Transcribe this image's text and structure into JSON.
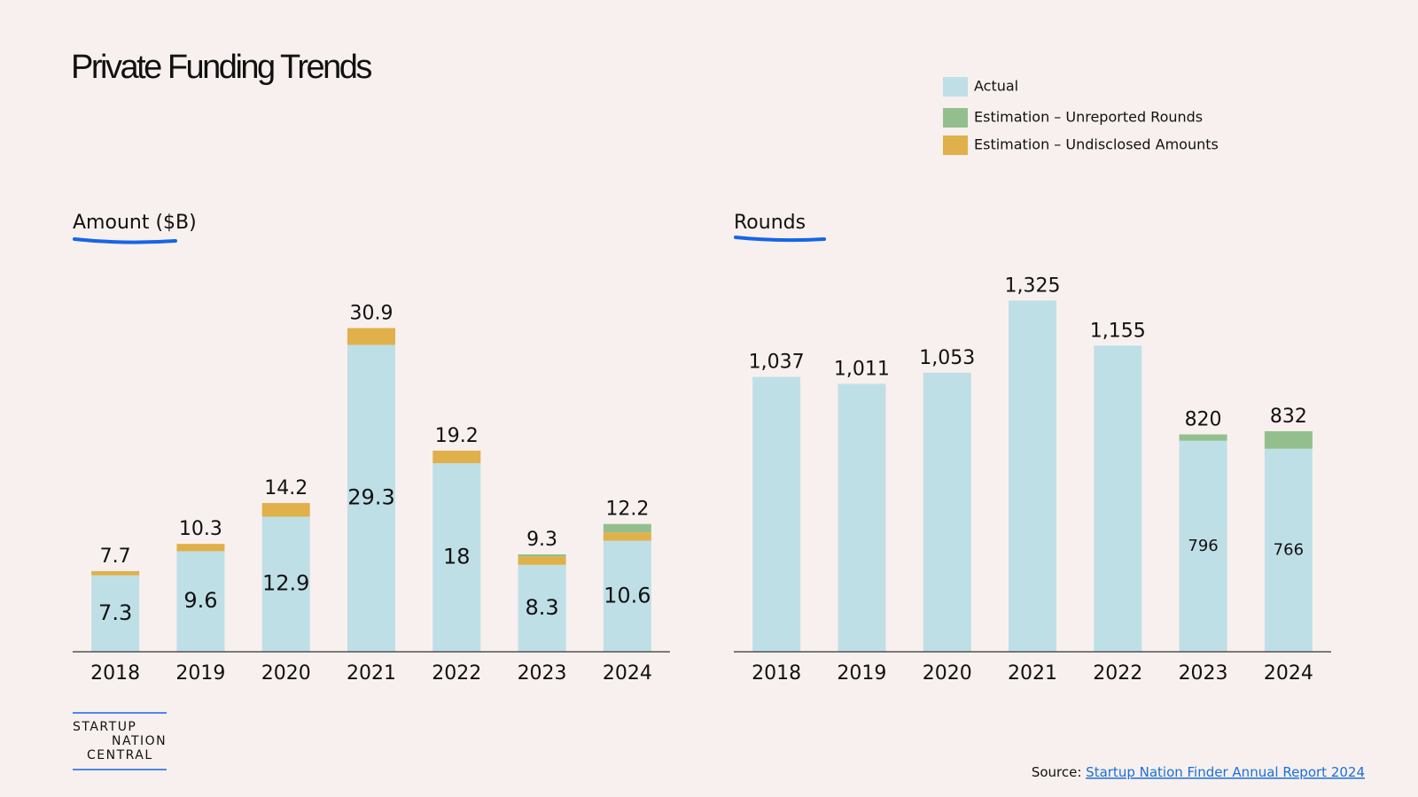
{
  "title": "Private Funding Trends",
  "chart_data": [
    {
      "type": "stacked-bar",
      "title": "Amount ($B)",
      "categories": [
        "2018",
        "2019",
        "2020",
        "2021",
        "2022",
        "2023",
        "2024"
      ],
      "series": [
        {
          "name": "Actual",
          "color": "#bfdfe7",
          "values": [
            7.3,
            9.6,
            12.9,
            29.3,
            18,
            8.3,
            10.6
          ]
        },
        {
          "name": "Estimation – Unreported Rounds",
          "color": "#93bf8f",
          "values": [
            0,
            0,
            0,
            0,
            0,
            0.2,
            0.8
          ]
        },
        {
          "name": "Estimation – Undisclosed Amounts",
          "color": "#e0b04a",
          "values": [
            0.4,
            0.7,
            1.3,
            1.6,
            1.2,
            0.8,
            0.8
          ]
        }
      ],
      "totals": [
        7.7,
        10.3,
        14.2,
        30.9,
        19.2,
        9.3,
        12.2
      ],
      "ylim": [
        0,
        35
      ]
    },
    {
      "type": "stacked-bar",
      "title": "Rounds",
      "categories": [
        "2018",
        "2019",
        "2020",
        "2021",
        "2022",
        "2023",
        "2024"
      ],
      "series": [
        {
          "color": "#bfdfe7",
          "values": [
            1037,
            1011,
            1053,
            1325,
            1155,
            796,
            766
          ],
          "value_labels": [
            null,
            null,
            null,
            null,
            null,
            "796",
            "766"
          ]
        },
        {
          "color": "#93bf8f",
          "values": [
            0,
            0,
            0,
            0,
            0,
            24,
            66
          ]
        }
      ],
      "totals": [
        1037,
        1011,
        1053,
        1325,
        1155,
        820,
        832
      ],
      "total_labels": [
        "1,037",
        "1,011",
        "1,053",
        "1,325",
        "1,155",
        "820",
        "832"
      ],
      "ylim": [
        0,
        1500
      ]
    }
  ],
  "logo": [
    "STARTUP",
    "NATION",
    "CENTRAL"
  ],
  "source": {
    "prefix": "Source:",
    "link": "Startup Nation Finder Annual Report 2024"
  }
}
